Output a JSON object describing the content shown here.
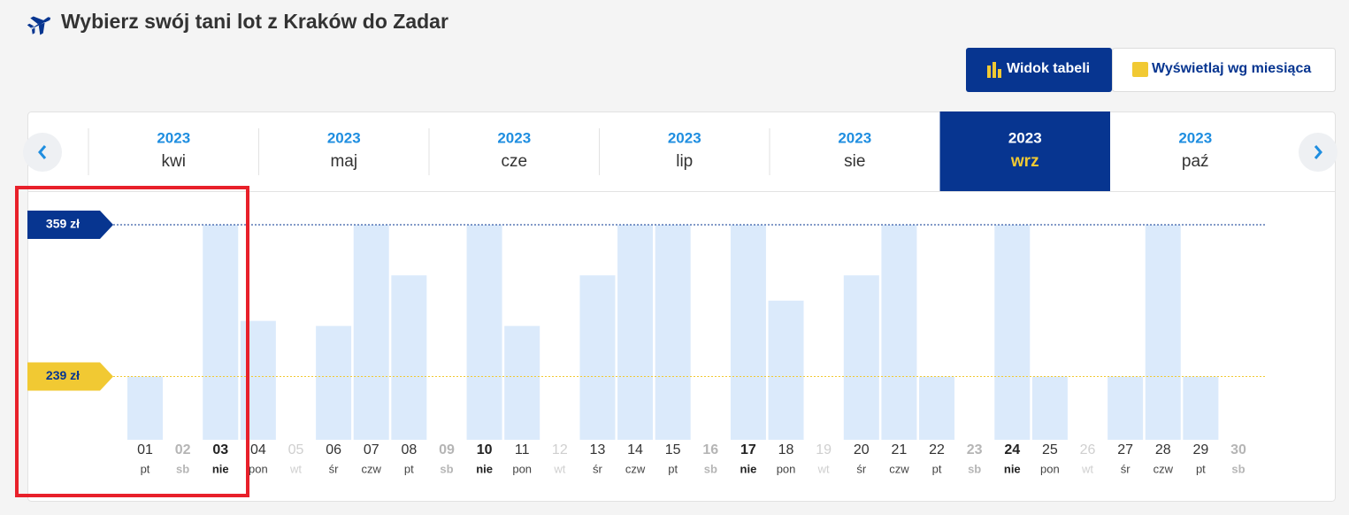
{
  "header": {
    "title": "Wybierz swój tani lot z Kraków do Zadar"
  },
  "view_buttons": [
    "Widok tabeli",
    "Wyświetlaj wg miesiąca"
  ],
  "months": {
    "selected": 5,
    "tabs": [
      {
        "year": "2023",
        "month": "kwi"
      },
      {
        "year": "2023",
        "month": "maj"
      },
      {
        "year": "2023",
        "month": "cze"
      },
      {
        "year": "2023",
        "month": "lip"
      },
      {
        "year": "2023",
        "month": "sie"
      },
      {
        "year": "2023",
        "month": "wrz"
      },
      {
        "year": "2023",
        "month": "paź"
      }
    ]
  },
  "chart_data": {
    "type": "bar",
    "color": "#dbeafb",
    "categories": [
      "01",
      "02",
      "03",
      "04",
      "05",
      "06",
      "07",
      "08",
      "09",
      "10",
      "11",
      "12",
      "13",
      "14",
      "15",
      "16",
      "17",
      "18",
      "19",
      "20",
      "21",
      "22",
      "23",
      "24",
      "25",
      "26",
      "27",
      "28",
      "29",
      "30"
    ],
    "weekdays": [
      "pt",
      "sb",
      "nie",
      "pon",
      "wt",
      "śr",
      "czw",
      "pt",
      "sb",
      "nie",
      "pon",
      "wt",
      "śr",
      "czw",
      "pt",
      "sb",
      "nie",
      "pon",
      "wt",
      "śr",
      "czw",
      "pt",
      "sb",
      "nie",
      "pon",
      "wt",
      "śr",
      "czw",
      "pt",
      "sb"
    ],
    "day_styles": [
      "normal",
      "muted-bold",
      "bold",
      "normal",
      "muted",
      "normal",
      "normal",
      "normal",
      "muted-bold",
      "bold",
      "normal",
      "muted",
      "normal",
      "normal",
      "normal",
      "muted-bold",
      "bold",
      "normal",
      "muted",
      "normal",
      "normal",
      "normal",
      "muted-bold",
      "bold",
      "normal",
      "muted",
      "normal",
      "normal",
      "normal",
      "muted-bold"
    ],
    "values": [
      239,
      null,
      359,
      283,
      null,
      279,
      359,
      319,
      null,
      359,
      279,
      null,
      319,
      359,
      359,
      null,
      359,
      299,
      null,
      319,
      359,
      239,
      null,
      359,
      239,
      null,
      239,
      359,
      239,
      null
    ],
    "ylim": [
      189,
      359
    ],
    "reference_lines": [
      {
        "value": 359,
        "label": "359 zł",
        "color": "#073590",
        "text_color": "#ffffff"
      },
      {
        "value": 239,
        "label": "239 zł",
        "color": "#f1c933",
        "text_color": "#073590"
      }
    ]
  }
}
